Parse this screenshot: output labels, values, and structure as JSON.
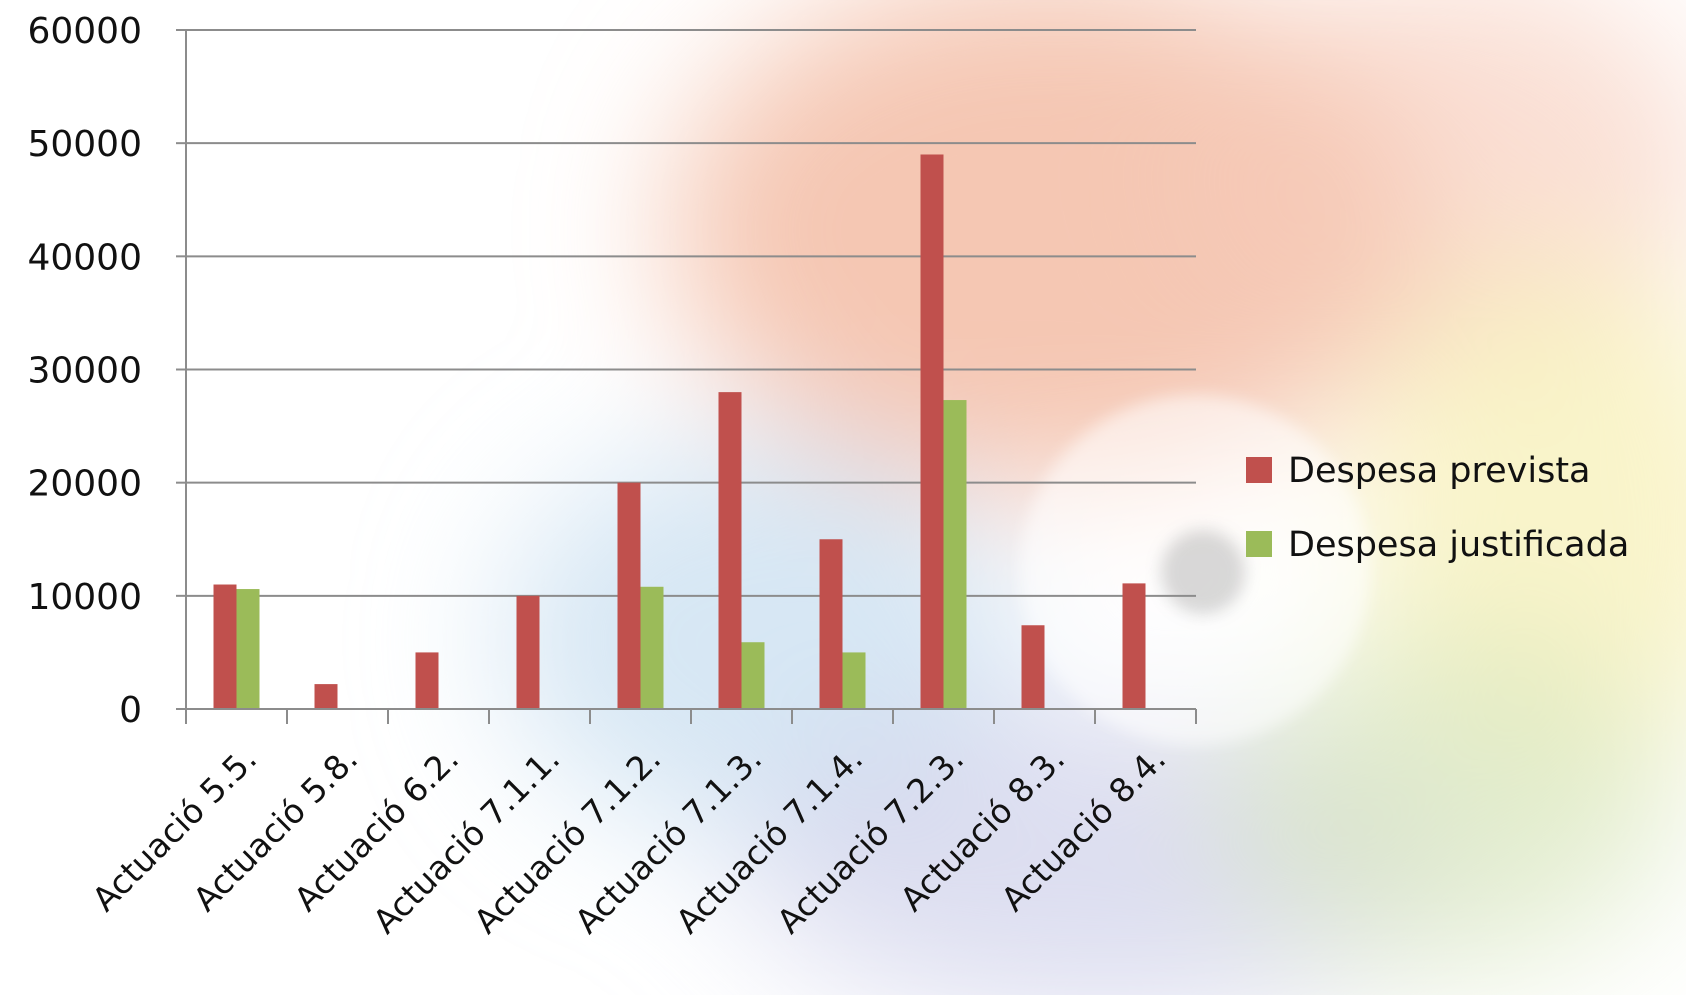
{
  "chart_data": {
    "type": "bar",
    "categories": [
      "Actuació 5.5.",
      "Actuació 5.8.",
      "Actuació 6.2.",
      "Actuació 7.1.1.",
      "Actuació 7.1.2.",
      "Actuació 7.1.3.",
      "Actuació 7.1.4.",
      "Actuació 7.2.3.",
      "Actuació 8.3.",
      "Actuació 8.4."
    ],
    "series": [
      {
        "name": "Despesa prevista",
        "color": "#c0504d",
        "values": [
          11000,
          2200,
          5000,
          10000,
          20000,
          28000,
          15000,
          49000,
          7400,
          11100
        ]
      },
      {
        "name": "Despesa justificada",
        "color": "#9bbb59",
        "values": [
          10600,
          0,
          0,
          0,
          10800,
          5900,
          5000,
          27300,
          0,
          0
        ]
      }
    ],
    "ylim": [
      0,
      60000
    ],
    "yticks": [
      "0",
      "10000",
      "20000",
      "30000",
      "40000",
      "50000",
      "60000"
    ],
    "grid": true,
    "legend_position": "right"
  }
}
